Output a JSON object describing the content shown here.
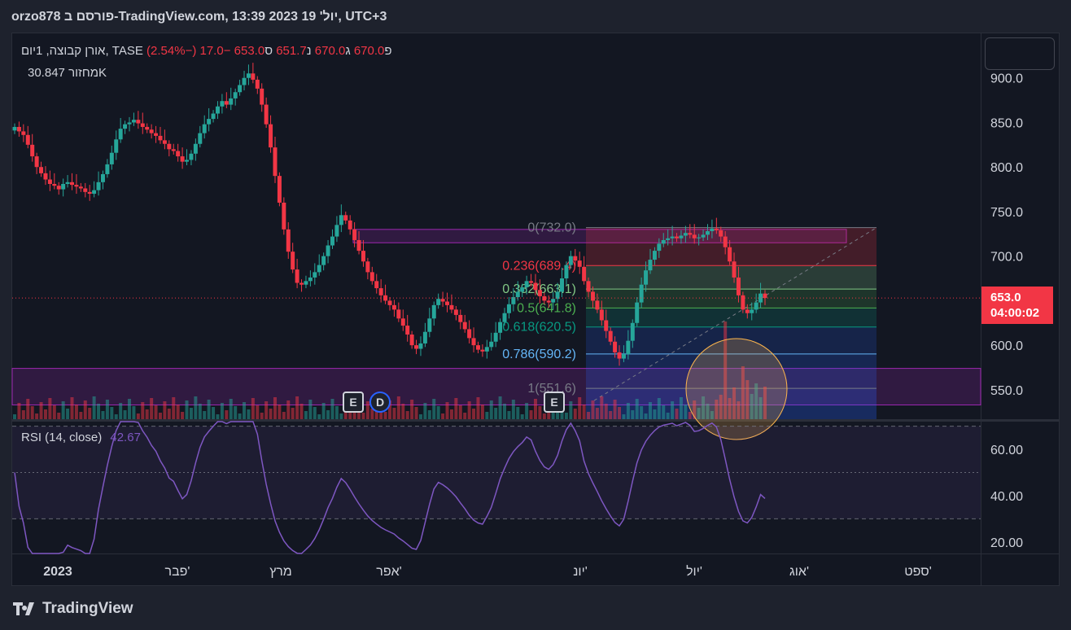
{
  "header": {
    "publisher_text": "orzo878 פורסם ב-TradingView.com, 13:39 2023 יול' 19, UTC+3"
  },
  "legend": {
    "symbol": "אורן קבוצה, 1יום, TASE",
    "open_label": "פ",
    "open_value": "670.0",
    "high_label": "ג",
    "high_value": "670.0",
    "low_label": "נ",
    "low_value": "651.7",
    "close_label": "ס",
    "close_value": "653.0",
    "change": "−17.0 (−2.54%)",
    "volume_label": "מחזור",
    "volume_value": "30.847K",
    "rsi_label": "RSI (14, close)",
    "rsi_value": "42.67"
  },
  "price_tag": {
    "price": "653.0",
    "countdown": "04:00:02"
  },
  "events": [
    {
      "id": "earnings-1",
      "label": "E",
      "type": "earnings"
    },
    {
      "id": "dividend-1",
      "label": "D",
      "type": "dividend"
    },
    {
      "id": "earnings-2",
      "label": "E",
      "type": "earnings"
    }
  ],
  "logo": {
    "text": "TradingView"
  },
  "colors": {
    "up": "#26a69a",
    "down": "#f23645",
    "rsi": "#7e57c2",
    "zone": "#9c27b0",
    "background": "#131722"
  },
  "chart_data": [
    {
      "type": "candlestick",
      "price_axis_ticks": [
        550,
        600,
        650,
        700,
        750,
        800,
        850,
        900
      ],
      "price_axis_labels": [
        "550.0",
        "600.0",
        "650.0",
        "700.0",
        "750.0",
        "800.0",
        "850.0",
        "900.0"
      ],
      "ylim": [
        517,
        950
      ],
      "x_labels": [
        "2023",
        "פבר'",
        "מרץ",
        "אפר'",
        "יונ'",
        "יול'",
        "אוג'",
        "ספט'"
      ],
      "last_price": 653.0,
      "close_series": [
        845,
        840,
        836,
        825,
        812,
        800,
        793,
        786,
        781,
        779,
        775,
        781,
        783,
        780,
        778,
        776,
        772,
        770,
        774,
        783,
        792,
        803,
        816,
        831,
        843,
        848,
        850,
        853,
        849,
        845,
        842,
        838,
        835,
        830,
        826,
        820,
        818,
        812,
        806,
        808,
        815,
        826,
        838,
        848,
        854,
        860,
        868,
        874,
        870,
        877,
        884,
        892,
        900,
        905,
        898,
        888,
        870,
        848,
        822,
        790,
        760,
        730,
        705,
        685,
        670,
        668,
        672,
        676,
        682,
        690,
        700,
        712,
        722,
        735,
        746,
        740,
        730,
        718,
        706,
        694,
        682,
        672,
        664,
        656,
        650,
        645,
        640,
        630,
        622,
        612,
        600,
        596,
        602,
        615,
        630,
        645,
        652,
        649,
        645,
        640,
        634,
        626,
        618,
        608,
        600,
        595,
        593,
        598,
        604,
        614,
        626,
        636,
        646,
        654,
        660,
        665,
        672,
        670,
        662,
        655,
        650,
        648,
        652,
        660,
        675,
        690,
        700,
        695,
        688,
        672,
        660,
        650,
        640,
        628,
        616,
        604,
        592,
        585,
        590,
        605,
        625,
        648,
        668,
        684,
        696,
        706,
        714,
        718,
        720,
        722,
        720,
        723,
        726,
        724,
        720,
        721,
        724,
        728,
        731,
        729,
        722,
        710,
        694,
        676,
        656,
        640,
        636,
        640,
        648,
        658,
        653
      ],
      "fibonacci": {
        "levels": [
          {
            "ratio": "0",
            "price": "732.0",
            "value": 732.0,
            "color": "#787b86"
          },
          {
            "ratio": "0.236",
            "price": "689.4",
            "value": 689.4,
            "color": "#f23645"
          },
          {
            "ratio": "0.382",
            "price": "663.1",
            "value": 663.1,
            "color": "#81c784"
          },
          {
            "ratio": "0.5",
            "price": "641.8",
            "value": 641.8,
            "color": "#4caf50"
          },
          {
            "ratio": "0.618",
            "price": "620.5",
            "value": 620.5,
            "color": "#089981"
          },
          {
            "ratio": "0.786",
            "price": "590.2",
            "value": 590.2,
            "color": "#64b5f6"
          },
          {
            "ratio": "1",
            "price": "551.6",
            "value": 551.6,
            "color": "#787b86"
          }
        ]
      },
      "zones": [
        {
          "name": "upper-resistance-zone",
          "from": 715,
          "to": 730
        },
        {
          "name": "lower-support-zone",
          "from": 533,
          "to": 574
        }
      ]
    },
    {
      "type": "line",
      "name": "RSI (14, close)",
      "ylim": [
        15,
        72
      ],
      "axis_ticks": [
        20,
        40,
        60
      ],
      "axis_labels": [
        "20.00",
        "40.00",
        "60.00"
      ],
      "bands": [
        30,
        50,
        70
      ],
      "last_value": 42.67
    }
  ]
}
